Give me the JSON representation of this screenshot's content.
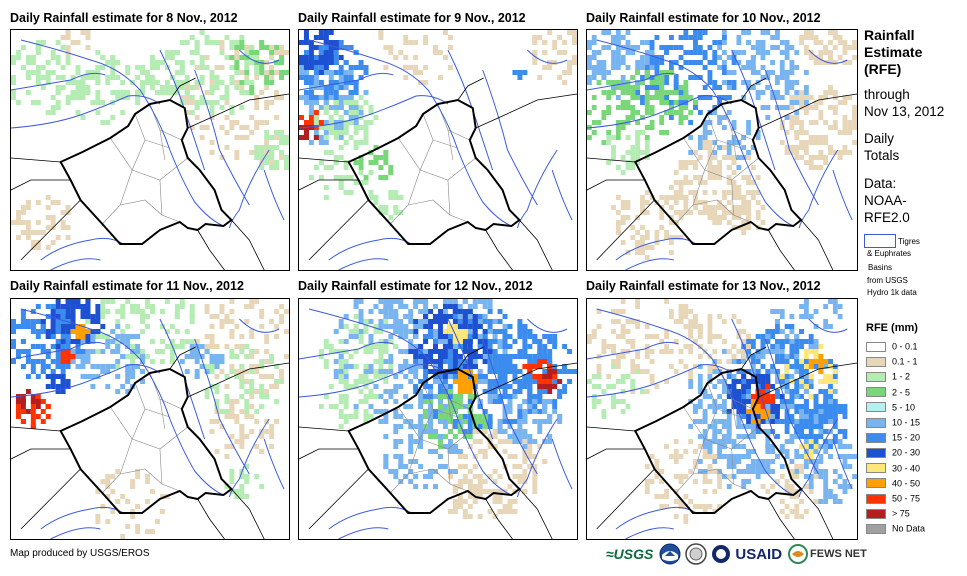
{
  "panels": [
    {
      "title": "Daily Rainfall estimate for 8 Nov., 2012"
    },
    {
      "title": "Daily Rainfall estimate for 9 Nov., 2012"
    },
    {
      "title": "Daily Rainfall estimate for 10 Nov., 2012"
    },
    {
      "title": "Daily Rainfall estimate for 11 Nov., 2012"
    },
    {
      "title": "Daily Rainfall estimate for 12 Nov., 2012"
    },
    {
      "title": "Daily Rainfall estimate for 13 Nov., 2012"
    }
  ],
  "side": {
    "title_lines": [
      "Rainfall",
      "Estimate",
      "(RFE)"
    ],
    "through": "through",
    "through_date": "Nov 13, 2012",
    "daily": "Daily",
    "totals": "Totals",
    "data_label": "Data:",
    "data_src1": "NOAA-",
    "data_src2": "RFE2.0",
    "basin_lines": [
      "Tigres",
      "& Euphrates",
      "Basins",
      "from USGS",
      "Hydro 1k data"
    ]
  },
  "legend": {
    "title": "RFE (mm)",
    "items": [
      {
        "label": "0 - 0.1",
        "color": "#ffffff"
      },
      {
        "label": "0.1 - 1",
        "color": "#e8d6b8"
      },
      {
        "label": "1 - 2",
        "color": "#b4ecb4"
      },
      {
        "label": "2 - 5",
        "color": "#78d778"
      },
      {
        "label": "5 - 10",
        "color": "#b4f0f0"
      },
      {
        "label": "10 - 15",
        "color": "#78b4f0"
      },
      {
        "label": "15 - 20",
        "color": "#3c8cf0"
      },
      {
        "label": "20 - 30",
        "color": "#1e50d2"
      },
      {
        "label": "30 - 40",
        "color": "#ffe678"
      },
      {
        "label": "40 - 50",
        "color": "#ffa000"
      },
      {
        "label": "50 - 75",
        "color": "#ff3200"
      },
      {
        "label": "> 75",
        "color": "#b41e1e"
      },
      {
        "label": "No Data",
        "color": "#a0a0a0"
      }
    ]
  },
  "footer": {
    "credit": "Map produced by USGS/EROS",
    "logo_usgs": "≈USGS",
    "logo_usaid": "USAID",
    "logo_fews": "FEWS NET"
  },
  "colors": {
    "river": "#3b5bdb",
    "border": "#000000",
    "admin": "#888888"
  },
  "icon_names": [
    "usgs-logo-icon",
    "noaa-logo-icon",
    "doi-seal-icon",
    "usaid-seal-icon",
    "fews-net-globe-icon"
  ]
}
